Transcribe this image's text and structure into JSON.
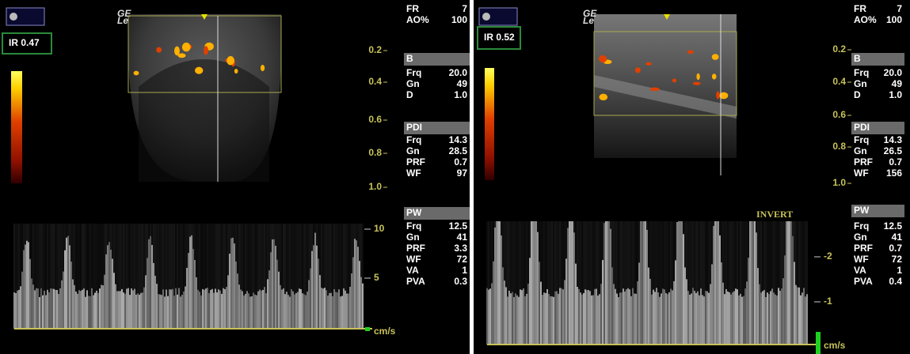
{
  "panels": [
    {
      "ir": "IR 0.47",
      "logo": "GE",
      "logo_sub": "Le",
      "depth_scale": [
        "0.2",
        "0.4",
        "0.6",
        "0.8",
        "1.0"
      ],
      "top_params": [
        {
          "label": "FR",
          "value": "7"
        },
        {
          "label": "AO%",
          "value": "100"
        }
      ],
      "sections": [
        {
          "title": "B",
          "rows": [
            {
              "label": "Frq",
              "value": "20.0"
            },
            {
              "label": "Gn",
              "value": "49"
            },
            {
              "label": "D",
              "value": "1.0"
            }
          ]
        },
        {
          "title": "PDI",
          "rows": [
            {
              "label": "Frq",
              "value": "14.3"
            },
            {
              "label": "Gn",
              "value": "28.5"
            },
            {
              "label": "PRF",
              "value": "0.7"
            },
            {
              "label": "WF",
              "value": "97"
            }
          ]
        },
        {
          "title": "PW",
          "rows": [
            {
              "label": "Frq",
              "value": "12.5"
            },
            {
              "label": "Gn",
              "value": "41"
            },
            {
              "label": "PRF",
              "value": "3.3"
            },
            {
              "label": "WF",
              "value": "72"
            },
            {
              "label": "VA",
              "value": "1"
            },
            {
              "label": "PVA",
              "value": "0.3"
            }
          ]
        }
      ],
      "doppler_scale": [
        "10",
        "5"
      ],
      "doppler_unit": "cm/s"
    },
    {
      "ir": "IR 0.52",
      "logo": "GE",
      "logo_sub": "Le",
      "depth_scale": [
        "0.2",
        "0.4",
        "0.6",
        "0.8",
        "1.0"
      ],
      "top_params": [
        {
          "label": "FR",
          "value": "7"
        },
        {
          "label": "AO%",
          "value": "100"
        }
      ],
      "sections": [
        {
          "title": "B",
          "rows": [
            {
              "label": "Frq",
              "value": "20.0"
            },
            {
              "label": "Gn",
              "value": "49"
            },
            {
              "label": "D",
              "value": "1.0"
            }
          ]
        },
        {
          "title": "PDI",
          "rows": [
            {
              "label": "Frq",
              "value": "14.3"
            },
            {
              "label": "Gn",
              "value": "26.5"
            },
            {
              "label": "PRF",
              "value": "0.7"
            },
            {
              "label": "WF",
              "value": "156"
            }
          ]
        },
        {
          "title": "PW",
          "rows": [
            {
              "label": "Frq",
              "value": "12.5"
            },
            {
              "label": "Gn",
              "value": "41"
            },
            {
              "label": "PRF",
              "value": "0.7"
            },
            {
              "label": "WF",
              "value": "72"
            },
            {
              "label": "VA",
              "value": "1"
            },
            {
              "label": "PVA",
              "value": "0.4"
            }
          ]
        }
      ],
      "invert": "INVERT",
      "doppler_scale": [
        "-2",
        "-1"
      ],
      "doppler_unit": "cm/s"
    }
  ]
}
